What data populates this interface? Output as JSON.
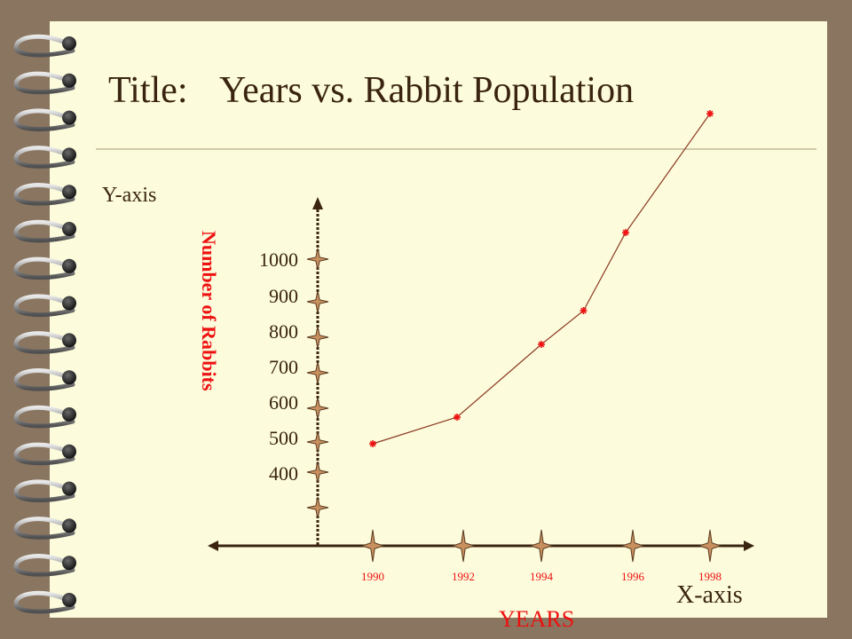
{
  "slide": {
    "title_prefix": "Title:",
    "title_text": "Years vs. Rabbit Population",
    "y_axis_caption": "Y-axis",
    "x_axis_caption": "X-axis",
    "ylabel": "Number of Rabbits",
    "xlabel": "YEARS"
  },
  "colors": {
    "background": "#8a7560",
    "paper": "#fcfbdc",
    "title": "#3a2410",
    "axis": "#3a2410",
    "label_red": "#ee1111",
    "tick_star": "#c8905e",
    "line": "#8b3a22",
    "marker": "#ee1111"
  },
  "chart_data": {
    "type": "line",
    "title": "Years vs. Rabbit Population",
    "xlabel": "YEARS",
    "ylabel": "Number of Rabbits",
    "x_tick_labels": [
      "1990",
      "1992",
      "1994",
      "1996",
      "1998"
    ],
    "y_tick_labels": [
      "1000",
      "900",
      "800",
      "700",
      "600",
      "500",
      "400"
    ],
    "series": [
      {
        "x": [
          1990,
          1992,
          1994,
          1995,
          1996,
          1998
        ],
        "y": [
          500,
          575,
          780,
          875,
          1095,
          1430
        ]
      }
    ],
    "grid": false,
    "legend": "none"
  }
}
